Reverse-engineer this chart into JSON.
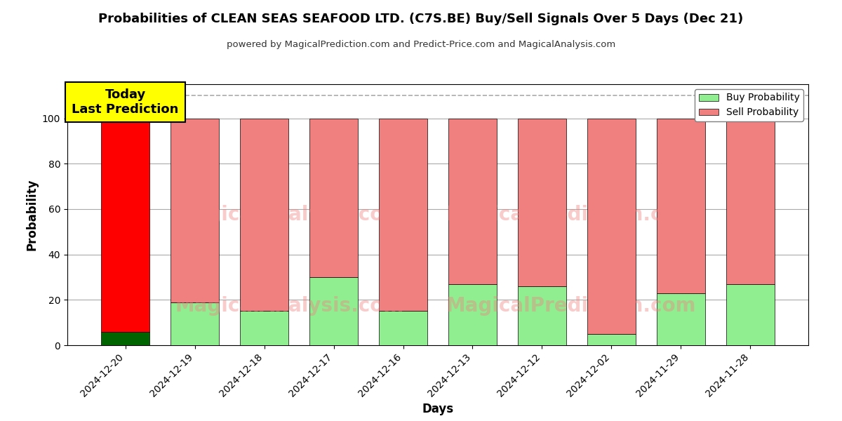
{
  "title": "Probabilities of CLEAN SEAS SEAFOOD LTD. (C7S.BE) Buy/Sell Signals Over 5 Days (Dec 21)",
  "subtitle": "powered by MagicalPrediction.com and Predict-Price.com and MagicalAnalysis.com",
  "xlabel": "Days",
  "ylabel": "Probability",
  "categories": [
    "2024-12-20",
    "2024-12-19",
    "2024-12-18",
    "2024-12-17",
    "2024-12-16",
    "2024-12-13",
    "2024-12-12",
    "2024-12-02",
    "2024-11-29",
    "2024-11-28"
  ],
  "buy_values": [
    6,
    19,
    15,
    30,
    15,
    27,
    26,
    5,
    23,
    27
  ],
  "sell_values": [
    94,
    81,
    85,
    70,
    85,
    73,
    74,
    95,
    77,
    73
  ],
  "buy_colors_today": "#006400",
  "buy_colors_normal": "#90EE90",
  "sell_colors_today": "#FF0000",
  "sell_colors_normal": "#F08080",
  "today_annotation": "Today\nLast Prediction",
  "today_annotation_bg": "#FFFF00",
  "dashed_line_y": 110,
  "ylim": [
    0,
    115
  ],
  "yticks": [
    0,
    20,
    40,
    60,
    80,
    100
  ],
  "watermark_text1": "MagicalAnalysis.com",
  "watermark_text2": "MagicalPrediction.com",
  "grid_color": "#aaaaaa",
  "legend_buy_color": "#90EE90",
  "legend_sell_color": "#F08080",
  "bar_edge_color": "#000000",
  "bar_linewidth": 0.5,
  "fig_width": 12.0,
  "fig_height": 6.0,
  "fig_dpi": 100
}
